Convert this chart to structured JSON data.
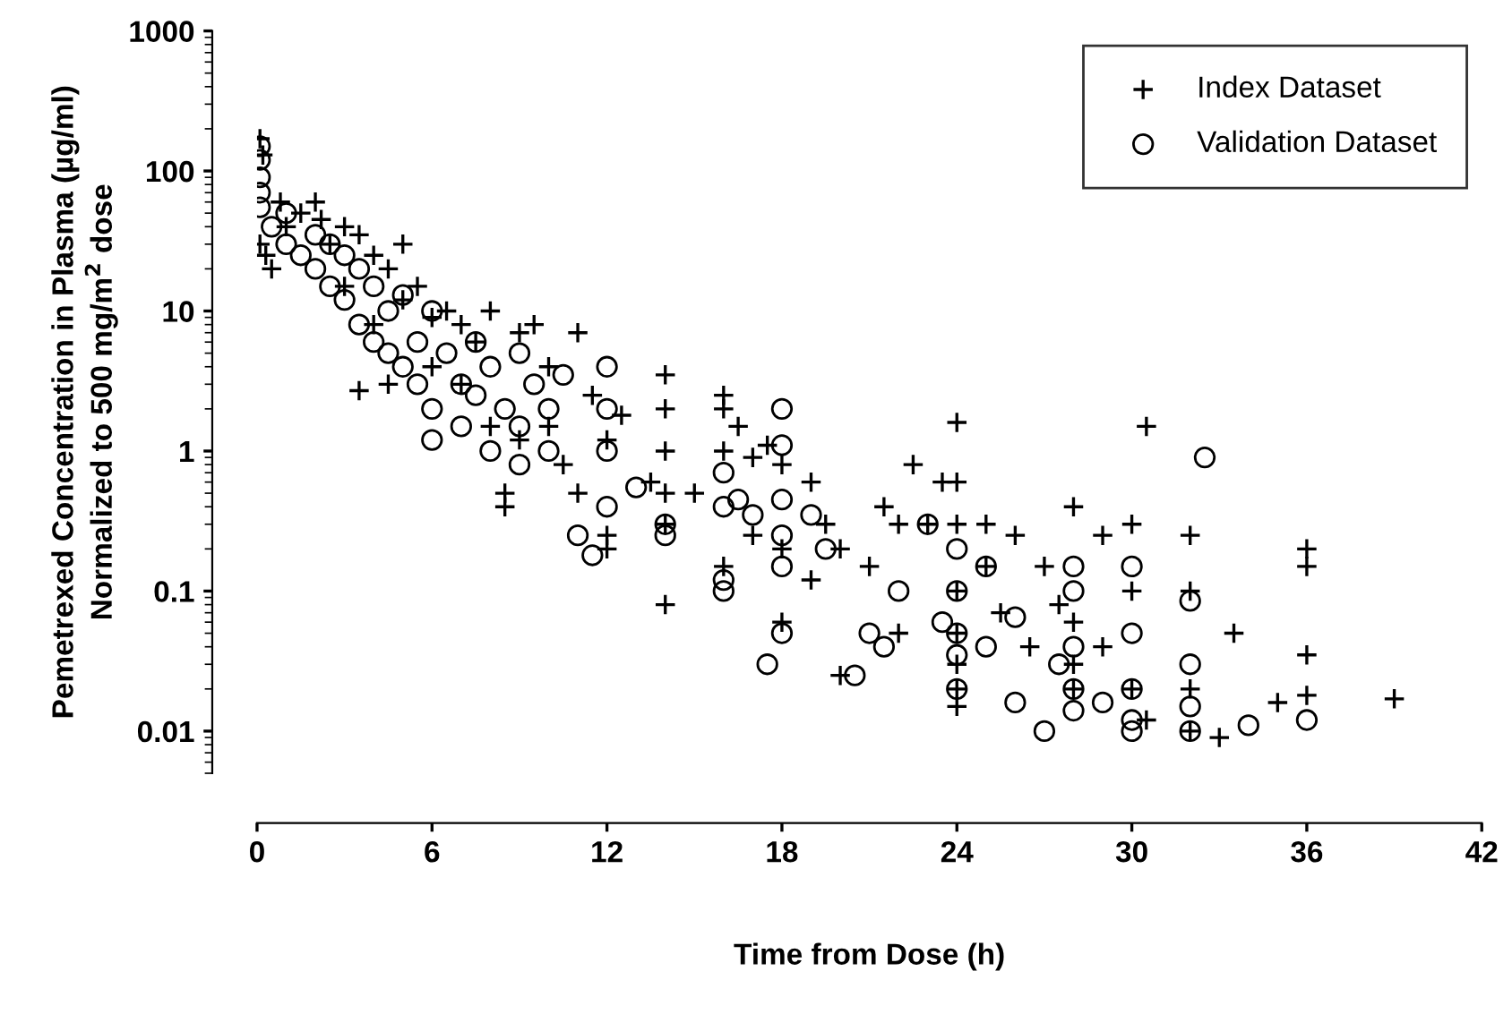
{
  "chart_data": {
    "type": "scatter",
    "xlabel": "Time from Dose (h)",
    "ylabel": "Pemetrexed Concentration in Plasma (µg/ml)\nNormalized to 500 mg/m$^{2}$ dose",
    "log": "y",
    "xlim": [
      0,
      42
    ],
    "xticks": [
      0,
      6,
      12,
      18,
      24,
      30,
      36,
      42
    ],
    "ylim": [
      0.005,
      1000
    ],
    "yticks": [
      {
        "value": 0.01,
        "label": "0.01"
      },
      {
        "value": 0.1,
        "label": "0.1"
      },
      1,
      10,
      100,
      1000
    ],
    "grid": false,
    "legend": "top right",
    "series": [
      {
        "name": "Index Dataset",
        "marker": "cross",
        "color": "#000000",
        "x": [
          0.1,
          0.2,
          0.1,
          0.3,
          0.5,
          0.8,
          1,
          1.5,
          2,
          2.2,
          2.5,
          3,
          3,
          3.5,
          4,
          4,
          4.5,
          5,
          5,
          5.5,
          3.5,
          4.5,
          6,
          6,
          6.5,
          7,
          7,
          7.5,
          8,
          8,
          8.5,
          8.5,
          9,
          9,
          9.5,
          10,
          10,
          10.5,
          11,
          11,
          11.5,
          12,
          12,
          12,
          12.5,
          14,
          14,
          14,
          14,
          14,
          14,
          13.5,
          15,
          16,
          16,
          16,
          16,
          16.5,
          17,
          17,
          17.5,
          18,
          18,
          18,
          19,
          19,
          19.5,
          20,
          20,
          21,
          21.5,
          22,
          22,
          22.5,
          23,
          23.5,
          24,
          24,
          24,
          24,
          24,
          24,
          24,
          24,
          25,
          25,
          25.5,
          26,
          26.5,
          27,
          27.5,
          28,
          28,
          28,
          28,
          29,
          29,
          30,
          30,
          30,
          30.5,
          30.5,
          32,
          32,
          32,
          32,
          33,
          33.5,
          35,
          36,
          36,
          36,
          36,
          39
        ],
        "values": [
          170,
          130,
          30,
          25,
          20,
          60,
          40,
          50,
          60,
          45,
          30,
          40,
          15,
          35,
          25,
          8,
          20,
          12,
          30,
          15,
          2.7,
          3,
          9,
          4,
          10,
          8,
          3,
          6,
          10,
          1.5,
          0.5,
          0.4,
          7,
          1.2,
          8,
          4,
          1.5,
          0.8,
          7,
          0.5,
          2.5,
          0.2,
          0.25,
          1.2,
          1.8,
          3.5,
          2,
          1,
          0.5,
          0.3,
          0.08,
          0.6,
          0.5,
          2.5,
          2,
          1,
          0.15,
          1.5,
          0.9,
          0.25,
          1.1,
          0.8,
          0.2,
          0.06,
          0.6,
          0.12,
          0.3,
          0.2,
          0.025,
          0.15,
          0.4,
          0.3,
          0.05,
          0.8,
          0.3,
          0.6,
          1.6,
          0.6,
          0.3,
          0.1,
          0.05,
          0.03,
          0.02,
          0.015,
          0.3,
          0.15,
          0.07,
          0.25,
          0.04,
          0.15,
          0.08,
          0.4,
          0.06,
          0.03,
          0.02,
          0.25,
          0.04,
          0.3,
          0.1,
          0.02,
          1.5,
          0.012,
          0.25,
          0.1,
          0.02,
          0.01,
          0.009,
          0.05,
          0.016,
          0.2,
          0.15,
          0.035,
          0.018,
          0.017
        ]
      },
      {
        "name": "Validation Dataset",
        "marker": "circle",
        "color": "#000000",
        "x": [
          0.1,
          0.1,
          0.1,
          0.1,
          0.1,
          0.5,
          1,
          1,
          1.5,
          2,
          2,
          2.5,
          2.5,
          3,
          3,
          3.5,
          3.5,
          4,
          4,
          4.5,
          4.5,
          5,
          5,
          5.5,
          5.5,
          6,
          6,
          6,
          6.5,
          7,
          7,
          7.5,
          7.5,
          8,
          8,
          8.5,
          9,
          9,
          9,
          9.5,
          10,
          10,
          10.5,
          11,
          11.5,
          12,
          12,
          12,
          12,
          13,
          14,
          14,
          16,
          16,
          16,
          16,
          16.5,
          17,
          17.5,
          18,
          18,
          18,
          18,
          18,
          18,
          19,
          19.5,
          20.5,
          21,
          21.5,
          22,
          23,
          23.5,
          24,
          24,
          24,
          24,
          24,
          25,
          25,
          26,
          26,
          27,
          27.5,
          28,
          28,
          28,
          28,
          28,
          29,
          30,
          30,
          30,
          30,
          30,
          32,
          32,
          32,
          32,
          32.5,
          34,
          36
        ],
        "values": [
          150,
          120,
          90,
          70,
          55,
          40,
          30,
          50,
          25,
          20,
          35,
          15,
          30,
          12,
          25,
          8,
          20,
          6,
          15,
          10,
          5,
          13,
          4,
          6,
          3,
          10,
          2,
          1.2,
          5,
          3,
          1.5,
          6,
          2.5,
          4,
          1,
          2,
          5,
          1.5,
          0.8,
          3,
          2,
          1,
          3.5,
          0.25,
          0.18,
          4,
          2,
          1,
          0.4,
          0.55,
          0.3,
          0.25,
          0.7,
          0.4,
          0.12,
          0.1,
          0.45,
          0.35,
          0.03,
          2,
          1.1,
          0.45,
          0.25,
          0.15,
          0.05,
          0.35,
          0.2,
          0.025,
          0.05,
          0.04,
          0.1,
          0.3,
          0.06,
          0.2,
          0.1,
          0.05,
          0.035,
          0.02,
          0.15,
          0.04,
          0.065,
          0.016,
          0.01,
          0.03,
          0.15,
          0.1,
          0.04,
          0.02,
          0.014,
          0.016,
          0.15,
          0.05,
          0.02,
          0.012,
          0.01,
          0.085,
          0.03,
          0.015,
          0.01,
          0.9,
          0.011,
          0.012
        ]
      }
    ]
  }
}
